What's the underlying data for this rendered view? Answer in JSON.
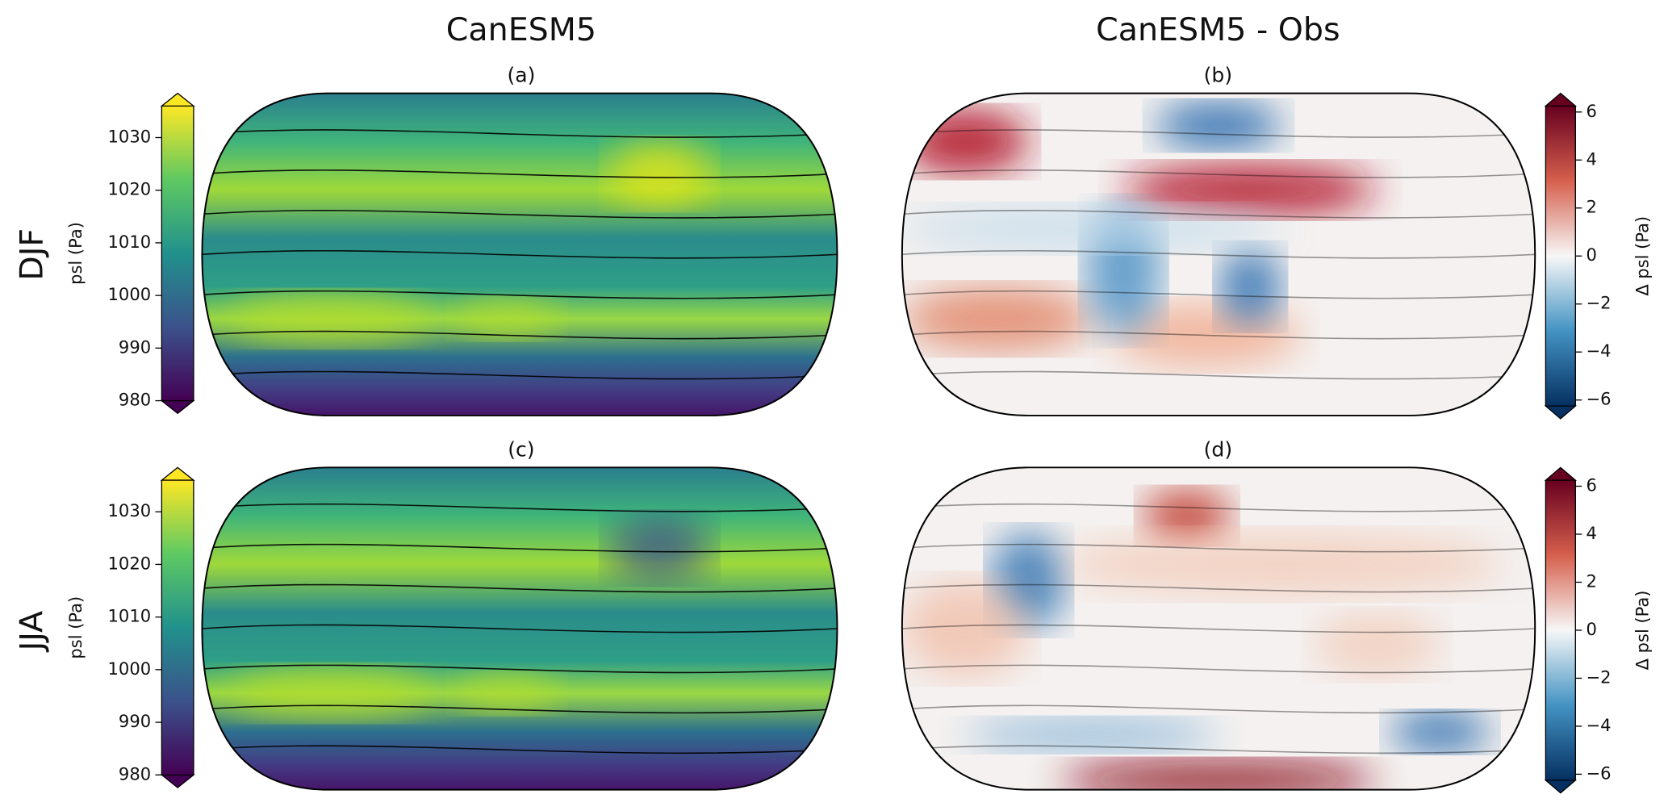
{
  "columns": [
    "CanESM5",
    "CanESM5 - Obs"
  ],
  "rows": [
    "DJF",
    "JJA"
  ],
  "panels": [
    "(a)",
    "(b)",
    "(c)",
    "(d)"
  ],
  "colorbars": [
    {
      "label": "psl (Pa)",
      "ylim": [
        980,
        1036
      ],
      "ticks": [
        980,
        990,
        1000,
        1010,
        1020,
        1030
      ],
      "colors": [
        "#440154",
        "#3b528b",
        "#21918c",
        "#5ec962",
        "#fde725"
      ]
    },
    {
      "label": "Δ psl (Pa)",
      "ylim": [
        -6.25,
        6.25
      ],
      "ticks": [
        {
          "value": -6,
          "label": "−6"
        },
        {
          "value": -4,
          "label": "−4"
        },
        {
          "value": -2,
          "label": "−2"
        },
        0,
        2,
        4,
        6
      ],
      "colors": [
        "#053061",
        "#4393c3",
        "#f7f7f7",
        "#d6604d",
        "#67001f"
      ]
    },
    {
      "label": "psl (Pa)",
      "ylim": [
        980,
        1036
      ],
      "ticks": [
        980,
        990,
        1000,
        1010,
        1020,
        1030
      ],
      "colors": [
        "#440154",
        "#3b528b",
        "#21918c",
        "#5ec962",
        "#fde725"
      ]
    },
    {
      "label": "Δ psl (Pa)",
      "ylim": [
        -6.25,
        6.25
      ],
      "ticks": [
        {
          "value": -6,
          "label": "−6"
        },
        {
          "value": -4,
          "label": "−4"
        },
        {
          "value": -2,
          "label": "−2"
        },
        0,
        2,
        4,
        6
      ],
      "colors": [
        "#053061",
        "#4393c3",
        "#f7f7f7",
        "#d6604d",
        "#67001f"
      ]
    }
  ]
}
